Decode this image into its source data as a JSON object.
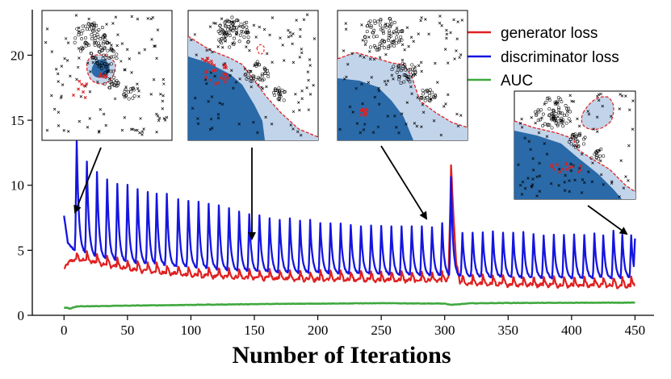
{
  "chart_data": {
    "type": "line",
    "title": "",
    "xlabel": "Number of Iterations",
    "ylabel": "",
    "xlim": [
      -25,
      465
    ],
    "ylim": [
      0,
      23.5
    ],
    "xticks": [
      0,
      50,
      100,
      150,
      200,
      250,
      300,
      350,
      400,
      450
    ],
    "yticks": [
      0,
      5,
      10,
      15,
      20
    ],
    "grid": false,
    "legend_position": "top-right",
    "series": [
      {
        "name": "generator loss",
        "color": "#e02020",
        "baseline_points": [
          [
            0,
            3.6
          ],
          [
            5,
            4.2
          ],
          [
            15,
            4.3
          ],
          [
            30,
            4.0
          ],
          [
            50,
            3.6
          ],
          [
            60,
            3.5
          ],
          [
            100,
            3.1
          ],
          [
            150,
            2.9
          ],
          [
            200,
            2.8
          ],
          [
            250,
            2.75
          ],
          [
            300,
            2.7
          ],
          [
            303,
            2.9
          ],
          [
            305,
            10.9
          ],
          [
            309,
            4.2
          ],
          [
            312,
            2.5
          ],
          [
            350,
            2.4
          ],
          [
            400,
            2.35
          ],
          [
            450,
            2.3
          ]
        ],
        "spike_amplitude": 0.6
      },
      {
        "name": "discriminator loss",
        "color": "#1515e0",
        "baseline_points": [
          [
            0,
            7.6
          ],
          [
            3,
            5.6
          ],
          [
            8,
            5.0
          ],
          [
            30,
            4.3
          ],
          [
            60,
            3.9
          ],
          [
            100,
            3.6
          ],
          [
            150,
            3.3
          ],
          [
            200,
            3.2
          ],
          [
            250,
            3.1
          ],
          [
            300,
            3.0
          ],
          [
            330,
            2.9
          ],
          [
            400,
            2.8
          ],
          [
            450,
            2.8
          ]
        ],
        "peaks": [
          [
            10,
            13.4
          ],
          [
            18,
            11.8
          ],
          [
            26,
            11.0
          ],
          [
            34,
            10.5
          ],
          [
            42,
            10.1
          ],
          [
            50,
            10.0
          ],
          [
            58,
            9.7
          ],
          [
            66,
            9.5
          ],
          [
            73,
            9.3
          ],
          [
            81,
            9.3
          ],
          [
            90,
            8.9
          ],
          [
            98,
            8.8
          ],
          [
            106,
            8.7
          ],
          [
            114,
            8.6
          ],
          [
            122,
            8.4
          ],
          [
            130,
            8.2
          ],
          [
            138,
            8.0
          ],
          [
            146,
            7.8
          ],
          [
            154,
            7.7
          ],
          [
            162,
            7.5
          ],
          [
            170,
            7.4
          ],
          [
            178,
            7.4
          ],
          [
            186,
            7.3
          ],
          [
            194,
            7.3
          ],
          [
            202,
            7.1
          ],
          [
            210,
            7.1
          ],
          [
            218,
            7.0
          ],
          [
            226,
            7.0
          ],
          [
            234,
            6.9
          ],
          [
            242,
            6.9
          ],
          [
            250,
            6.9
          ],
          [
            258,
            6.8
          ],
          [
            266,
            6.8
          ],
          [
            274,
            6.8
          ],
          [
            282,
            6.8
          ],
          [
            290,
            6.8
          ],
          [
            298,
            7.1
          ],
          [
            305,
            10.6
          ],
          [
            314,
            6.3
          ],
          [
            322,
            6.4
          ],
          [
            330,
            6.4
          ],
          [
            338,
            6.4
          ],
          [
            346,
            6.4
          ],
          [
            354,
            6.4
          ],
          [
            362,
            6.4
          ],
          [
            370,
            6.3
          ],
          [
            378,
            6.2
          ],
          [
            386,
            6.2
          ],
          [
            394,
            6.2
          ],
          [
            402,
            6.2
          ],
          [
            410,
            6.2
          ],
          [
            418,
            6.3
          ],
          [
            425,
            6.2
          ],
          [
            433,
            6.5
          ],
          [
            440,
            6.2
          ],
          [
            447,
            6.1
          ]
        ],
        "end_value": 5.9
      },
      {
        "name": "AUC",
        "color": "#3fa83f",
        "baseline_points": [
          [
            0,
            0.6
          ],
          [
            5,
            0.52
          ],
          [
            10,
            0.68
          ],
          [
            50,
            0.74
          ],
          [
            100,
            0.8
          ],
          [
            150,
            0.86
          ],
          [
            200,
            0.9
          ],
          [
            250,
            0.93
          ],
          [
            300,
            0.9
          ],
          [
            305,
            0.8
          ],
          [
            320,
            0.92
          ],
          [
            350,
            0.95
          ],
          [
            400,
            0.96
          ],
          [
            450,
            0.98
          ]
        ]
      }
    ],
    "annotations": [
      {
        "inset": 1,
        "points_to": [
          9,
          7.4
        ]
      },
      {
        "inset": 2,
        "points_to": [
          149,
          5.6
        ]
      },
      {
        "inset": 3,
        "points_to": [
          288,
          7.2
        ]
      },
      {
        "inset": 4,
        "points_to": [
          445,
          6.0
        ]
      }
    ]
  },
  "colors": {
    "dark_region": "#2a6aa8",
    "light_region": "#c2d4ea",
    "boundary": "#e02020",
    "generated_points": "#e02020",
    "axis": "#000000"
  }
}
